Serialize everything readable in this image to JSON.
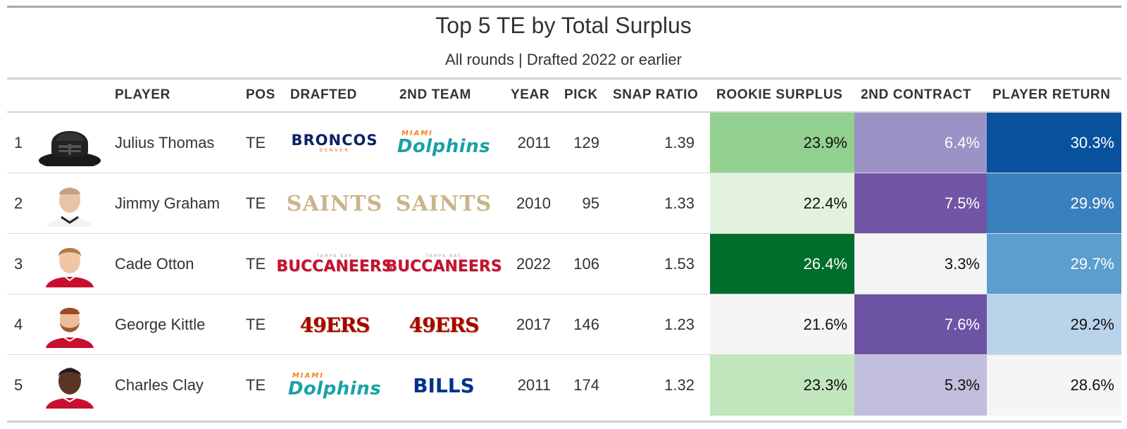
{
  "chart_data": {
    "type": "table",
    "title": "Top 5 TE by Total Surplus",
    "subtitle": "All rounds | Drafted 2022 or earlier",
    "columns": [
      "",
      "",
      "PLAYER",
      "POS",
      "DRAFTED",
      "2ND TEAM",
      "YEAR",
      "PICK",
      "SNAP RATIO",
      "ROOKIE SURPLUS",
      "2ND CONTRACT",
      "PLAYER RETURN"
    ],
    "rows": [
      {
        "rank": "1",
        "player": "Julius Thomas",
        "pos": "TE",
        "drafted": {
          "line1": "BRONCOS",
          "line2": "DENVER"
        },
        "second_team": {
          "line1": "MIAMI",
          "line2": "Dolphins"
        },
        "year": "2011",
        "pick": "129",
        "snap_ratio": "1.39",
        "rookie_surplus": "23.9%",
        "second_contract": "6.4%",
        "player_return": "30.3%",
        "rookie_surplus_value": 23.9,
        "second_contract_value": 6.4,
        "player_return_value": 30.3,
        "colors": {
          "rookie_surplus": "#92d08f",
          "second_contract": "#9b92c5",
          "player_return": "#08519c"
        },
        "text_colors": {
          "rookie_surplus": "#111111",
          "second_contract": "#ffffff",
          "player_return": "#ffffff"
        },
        "avatar": "helmet-silhouette"
      },
      {
        "rank": "2",
        "player": "Jimmy Graham",
        "pos": "TE",
        "drafted": {
          "line1": "SAINTS"
        },
        "second_team": {
          "line1": "SAINTS"
        },
        "year": "2010",
        "pick": "95",
        "snap_ratio": "1.33",
        "rookie_surplus": "22.4%",
        "second_contract": "7.5%",
        "player_return": "29.9%",
        "rookie_surplus_value": 22.4,
        "second_contract_value": 7.5,
        "player_return_value": 29.9,
        "colors": {
          "rookie_surplus": "#e3f2dd",
          "second_contract": "#7154a5",
          "player_return": "#3a80bd"
        },
        "text_colors": {
          "rookie_surplus": "#111111",
          "second_contract": "#ffffff",
          "player_return": "#ffffff"
        },
        "avatar": "player-headshot-white"
      },
      {
        "rank": "3",
        "player": "Cade Otton",
        "pos": "TE",
        "drafted": {
          "line1": "TAMPA BAY",
          "line2": "BUCCANEERS"
        },
        "second_team": {
          "line1": "TAMPA BAY",
          "line2": "BUCCANEERS"
        },
        "year": "2022",
        "pick": "106",
        "snap_ratio": "1.53",
        "rookie_surplus": "26.4%",
        "second_contract": "3.3%",
        "player_return": "29.7%",
        "rookie_surplus_value": 26.4,
        "second_contract_value": 3.3,
        "player_return_value": 29.7,
        "colors": {
          "rookie_surplus": "#006d2c",
          "second_contract": "#f5f5f5",
          "player_return": "#5b9ecf"
        },
        "text_colors": {
          "rookie_surplus": "#ffffff",
          "second_contract": "#111111",
          "player_return": "#ffffff"
        },
        "avatar": "player-headshot-red"
      },
      {
        "rank": "4",
        "player": "George Kittle",
        "pos": "TE",
        "drafted": {
          "line1": "49ERS"
        },
        "second_team": {
          "line1": "49ERS"
        },
        "year": "2017",
        "pick": "146",
        "snap_ratio": "1.23",
        "rookie_surplus": "21.6%",
        "second_contract": "7.6%",
        "player_return": "29.2%",
        "rookie_surplus_value": 21.6,
        "second_contract_value": 7.6,
        "player_return_value": 29.2,
        "colors": {
          "rookie_surplus": "#f5f5f5",
          "second_contract": "#6d53a4",
          "player_return": "#b9d3ea"
        },
        "text_colors": {
          "rookie_surplus": "#111111",
          "second_contract": "#ffffff",
          "player_return": "#111111"
        },
        "avatar": "player-headshot-red-beard"
      },
      {
        "rank": "5",
        "player": "Charles Clay",
        "pos": "TE",
        "drafted": {
          "line1": "MIAMI",
          "line2": "Dolphins"
        },
        "second_team": {
          "line1": "BILLS"
        },
        "year": "2011",
        "pick": "174",
        "snap_ratio": "1.32",
        "rookie_surplus": "23.3%",
        "second_contract": "5.3%",
        "player_return": "28.6%",
        "rookie_surplus_value": 23.3,
        "second_contract_value": 5.3,
        "player_return_value": 28.6,
        "colors": {
          "rookie_surplus": "#c1e5bc",
          "second_contract": "#c2bedd",
          "player_return": "#f5f5f5"
        },
        "text_colors": {
          "rookie_surplus": "#111111",
          "second_contract": "#111111",
          "player_return": "#111111"
        },
        "avatar": "player-headshot-red-dark"
      }
    ]
  }
}
